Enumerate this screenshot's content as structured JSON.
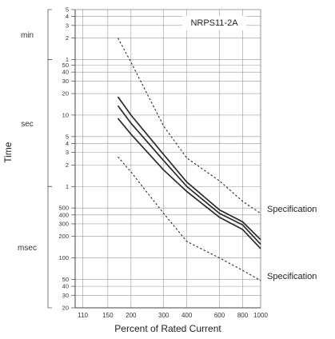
{
  "chart_data": {
    "type": "line",
    "title": "NRPS11-2A",
    "xlabel": "Percent of Rated Current",
    "ylabel": "Time",
    "x_scale": "log",
    "y_scale": "log",
    "xlim": [
      100,
      1000
    ],
    "ylim_seconds": [
      0.02,
      300
    ],
    "x_ticks": [
      110,
      150,
      200,
      300,
      400,
      600,
      800,
      1000
    ],
    "y_tick_labels": [
      {
        "label": "5",
        "value_s": 300
      },
      {
        "label": "4",
        "value_s": 240
      },
      {
        "label": "3",
        "value_s": 180
      },
      {
        "label": "2",
        "value_s": 120
      },
      {
        "label": "1",
        "value_s": 60
      },
      {
        "label": "50",
        "value_s": 50
      },
      {
        "label": "40",
        "value_s": 40
      },
      {
        "label": "30",
        "value_s": 30
      },
      {
        "label": "20",
        "value_s": 20
      },
      {
        "label": "10",
        "value_s": 10
      },
      {
        "label": "5",
        "value_s": 5
      },
      {
        "label": "4",
        "value_s": 4
      },
      {
        "label": "3",
        "value_s": 3
      },
      {
        "label": "2",
        "value_s": 2
      },
      {
        "label": "1",
        "value_s": 1
      },
      {
        "label": "500",
        "value_s": 0.5
      },
      {
        "label": "400",
        "value_s": 0.4
      },
      {
        "label": "300",
        "value_s": 0.3
      },
      {
        "label": "200",
        "value_s": 0.2
      },
      {
        "label": "100",
        "value_s": 0.1
      },
      {
        "label": "50",
        "value_s": 0.05
      },
      {
        "label": "40",
        "value_s": 0.04
      },
      {
        "label": "30",
        "value_s": 0.03
      },
      {
        "label": "20",
        "value_s": 0.02
      }
    ],
    "grid_y_seconds": [
      0.02,
      0.03,
      0.04,
      0.05,
      0.1,
      0.2,
      0.3,
      0.4,
      0.5,
      1,
      2,
      3,
      4,
      5,
      10,
      20,
      30,
      40,
      50,
      60,
      120,
      180,
      240,
      300
    ],
    "unit_bands": [
      {
        "label": "min",
        "from_s": 60,
        "to_s": 300
      },
      {
        "label": "sec",
        "from_s": 1,
        "to_s": 60
      },
      {
        "label": "msec",
        "from_s": 0.02,
        "to_s": 1
      }
    ],
    "series": [
      {
        "style": "solid",
        "x": [
          170,
          200,
          300,
          400,
          600,
          800,
          1000
        ],
        "y": [
          18,
          10,
          2.8,
          1.15,
          0.47,
          0.32,
          0.18
        ]
      },
      {
        "style": "solid",
        "x": [
          170,
          200,
          300,
          400,
          600,
          800,
          1000
        ],
        "y": [
          13.5,
          7.7,
          2.3,
          1.0,
          0.42,
          0.29,
          0.155
        ]
      },
      {
        "style": "solid",
        "x": [
          170,
          200,
          300,
          400,
          600,
          800,
          1000
        ],
        "y": [
          9,
          5.4,
          1.7,
          0.85,
          0.37,
          0.25,
          0.135
        ]
      },
      {
        "style": "dashed",
        "x": [
          170,
          200,
          300,
          400,
          600,
          800,
          1000
        ],
        "y": [
          120,
          55,
          7,
          2.5,
          1.2,
          0.62,
          0.42
        ]
      },
      {
        "style": "dashed",
        "x": [
          170,
          200,
          300,
          400,
          600,
          800,
          1000
        ],
        "y": [
          2.6,
          1.6,
          0.42,
          0.17,
          0.1,
          0.067,
          0.048
        ]
      }
    ],
    "annotations": [
      {
        "text": "Specification",
        "at_x": 1000,
        "at_y_s": 0.42
      },
      {
        "text": "Specification",
        "at_x": 1000,
        "at_y_s": 0.048
      }
    ]
  }
}
